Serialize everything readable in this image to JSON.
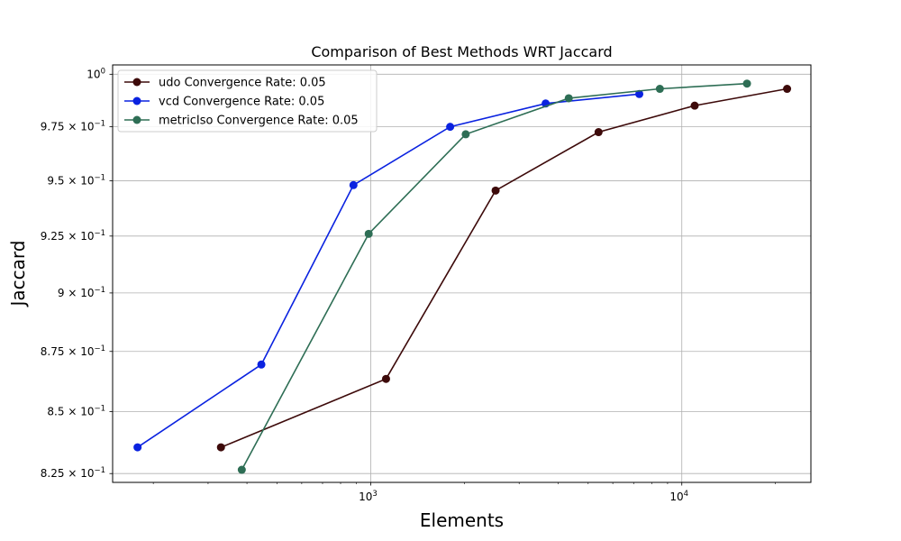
{
  "chart_data": {
    "type": "line",
    "title": "Comparison of Best Methods WRT Jaccard",
    "xlabel": "Elements",
    "ylabel": "Jaccard",
    "xscale": "log",
    "yscale": "log",
    "xlim": [
      148,
      26000
    ],
    "ylim": [
      0.8215,
      1.0045
    ],
    "x_ticks": [
      {
        "value": 1000,
        "base": "10",
        "exp": "3"
      },
      {
        "value": 10000,
        "base": "10",
        "exp": "4"
      }
    ],
    "y_ticks": [
      {
        "value": 1.0,
        "mant": "10",
        "exp": "0",
        "label": "10"
      },
      {
        "value": 0.975,
        "mant": "9.75 × 10",
        "exp": "−1"
      },
      {
        "value": 0.95,
        "mant": "9.5 × 10",
        "exp": "−1"
      },
      {
        "value": 0.925,
        "mant": "9.25 × 10",
        "exp": "−1"
      },
      {
        "value": 0.9,
        "mant": "9 × 10",
        "exp": "−1"
      },
      {
        "value": 0.875,
        "mant": "8.75 × 10",
        "exp": "−1"
      },
      {
        "value": 0.85,
        "mant": "8.5 × 10",
        "exp": "−1"
      },
      {
        "value": 0.825,
        "mant": "8.25 × 10",
        "exp": "−1"
      }
    ],
    "grid": true,
    "legend_position": "top-left",
    "series": [
      {
        "name": "udo Convergence Rate: 0.05",
        "color": "#3d0a0a",
        "x": [
          330,
          1120,
          2520,
          5400,
          11000,
          21800
        ],
        "y": [
          0.8355,
          0.8635,
          0.9455,
          0.9725,
          0.985,
          0.993
        ]
      },
      {
        "name": "vcd Convergence Rate: 0.05",
        "color": "#0a22e0",
        "x": [
          178,
          445,
          880,
          1800,
          3650,
          7300
        ],
        "y": [
          0.8355,
          0.8695,
          0.948,
          0.975,
          0.986,
          0.9905
        ]
      },
      {
        "name": "metricIso Convergence Rate: 0.05",
        "color": "#2e6e55",
        "x": [
          385,
          985,
          2020,
          4330,
          8500,
          16200
        ],
        "y": [
          0.8265,
          0.926,
          0.9715,
          0.9885,
          0.993,
          0.9955
        ]
      }
    ]
  }
}
